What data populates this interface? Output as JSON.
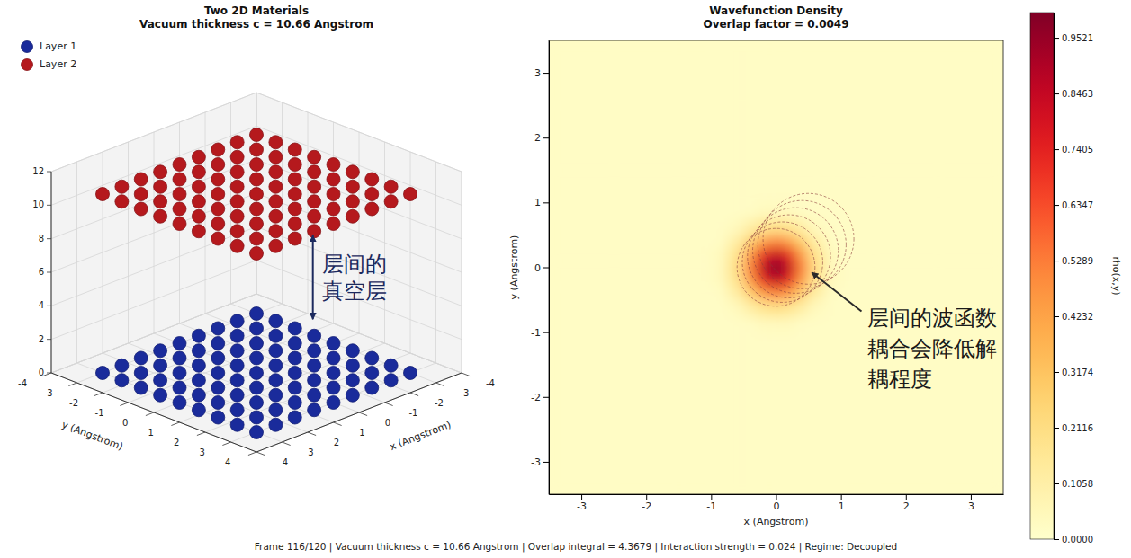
{
  "chart_data": [
    {
      "type": "scatter3d",
      "title": "Two 2D Materials",
      "subtitle": "Vacuum thickness c = 10.66 Angstrom",
      "x_label": "x (Angstrom)",
      "y_label": "y (Angstrom)",
      "xlim": [
        -4,
        4
      ],
      "xticks": [
        -4,
        -3,
        -2,
        -1,
        0,
        1,
        2,
        3,
        4
      ],
      "ylim": [
        -4,
        4
      ],
      "yticks": [
        -4,
        -3,
        -2,
        -1,
        0,
        1,
        2,
        3,
        4
      ],
      "zlim": [
        0,
        12
      ],
      "zticks": [
        0,
        2,
        4,
        6,
        8,
        10,
        12
      ],
      "grid": true,
      "legend": "upper left",
      "series": [
        {
          "name": "Layer 1",
          "color": "#1a2b9b",
          "marker": "circle",
          "x": [
            -3,
            -2.25,
            -1.5,
            -0.75,
            0,
            0.75,
            1.5,
            2.25,
            3,
            -3,
            -2.25,
            -1.5,
            -0.75,
            0,
            0.75,
            1.5,
            2.25,
            3,
            -3,
            -2.25,
            -1.5,
            -0.75,
            0,
            0.75,
            1.5,
            2.25,
            3,
            -3,
            -2.25,
            -1.5,
            -0.75,
            0,
            0.75,
            1.5,
            2.25,
            3,
            -3,
            -2.25,
            -1.5,
            -0.75,
            0,
            0.75,
            1.5,
            2.25,
            3,
            -3,
            -2.25,
            -1.5,
            -0.75,
            0,
            0.75,
            1.5,
            2.25,
            3,
            -3,
            -2.25,
            -1.5,
            -0.75,
            0,
            0.75,
            1.5,
            2.25,
            3,
            -3,
            -2.25,
            -1.5,
            -0.75,
            0,
            0.75,
            1.5,
            2.25,
            3,
            -3,
            -2.25,
            -1.5,
            -0.75,
            0,
            0.75,
            1.5,
            2.25,
            3
          ],
          "y": [
            -3,
            -3,
            -3,
            -3,
            -3,
            -3,
            -3,
            -3,
            -3,
            -2.25,
            -2.25,
            -2.25,
            -2.25,
            -2.25,
            -2.25,
            -2.25,
            -2.25,
            -2.25,
            -1.5,
            -1.5,
            -1.5,
            -1.5,
            -1.5,
            -1.5,
            -1.5,
            -1.5,
            -1.5,
            -0.75,
            -0.75,
            -0.75,
            -0.75,
            -0.75,
            -0.75,
            -0.75,
            -0.75,
            -0.75,
            0,
            0,
            0,
            0,
            0,
            0,
            0,
            0,
            0,
            0.75,
            0.75,
            0.75,
            0.75,
            0.75,
            0.75,
            0.75,
            0.75,
            0.75,
            1.5,
            1.5,
            1.5,
            1.5,
            1.5,
            1.5,
            1.5,
            1.5,
            1.5,
            2.25,
            2.25,
            2.25,
            2.25,
            2.25,
            2.25,
            2.25,
            2.25,
            2.25,
            3,
            3,
            3,
            3,
            3,
            3,
            3,
            3,
            3
          ],
          "z": [
            0,
            0,
            0,
            0,
            0,
            0,
            0,
            0,
            0,
            0,
            0,
            0,
            0,
            0,
            0,
            0,
            0,
            0,
            0,
            0,
            0,
            0,
            0,
            0,
            0,
            0,
            0,
            0,
            0,
            0,
            0,
            0,
            0,
            0,
            0,
            0,
            0,
            0,
            0,
            0,
            0,
            0,
            0,
            0,
            0,
            0,
            0,
            0,
            0,
            0,
            0,
            0,
            0,
            0,
            0,
            0,
            0,
            0,
            0,
            0,
            0,
            0,
            0,
            0,
            0,
            0,
            0,
            0,
            0,
            0,
            0,
            0,
            0,
            0,
            0,
            0,
            0,
            0,
            0,
            0,
            0
          ]
        },
        {
          "name": "Layer 2",
          "color": "#b5191d",
          "marker": "circle",
          "x": [
            -3,
            -2.25,
            -1.5,
            -0.75,
            0,
            0.75,
            1.5,
            2.25,
            3,
            -3,
            -2.25,
            -1.5,
            -0.75,
            0,
            0.75,
            1.5,
            2.25,
            3,
            -3,
            -2.25,
            -1.5,
            -0.75,
            0,
            0.75,
            1.5,
            2.25,
            3,
            -3,
            -2.25,
            -1.5,
            -0.75,
            0,
            0.75,
            1.5,
            2.25,
            3,
            -3,
            -2.25,
            -1.5,
            -0.75,
            0,
            0.75,
            1.5,
            2.25,
            3,
            -3,
            -2.25,
            -1.5,
            -0.75,
            0,
            0.75,
            1.5,
            2.25,
            3,
            -3,
            -2.25,
            -1.5,
            -0.75,
            0,
            0.75,
            1.5,
            2.25,
            3,
            -3,
            -2.25,
            -1.5,
            -0.75,
            0,
            0.75,
            1.5,
            2.25,
            3,
            -3,
            -2.25,
            -1.5,
            -0.75,
            0,
            0.75,
            1.5,
            2.25,
            3
          ],
          "y": [
            -3,
            -3,
            -3,
            -3,
            -3,
            -3,
            -3,
            -3,
            -3,
            -2.25,
            -2.25,
            -2.25,
            -2.25,
            -2.25,
            -2.25,
            -2.25,
            -2.25,
            -2.25,
            -1.5,
            -1.5,
            -1.5,
            -1.5,
            -1.5,
            -1.5,
            -1.5,
            -1.5,
            -1.5,
            -0.75,
            -0.75,
            -0.75,
            -0.75,
            -0.75,
            -0.75,
            -0.75,
            -0.75,
            -0.75,
            0,
            0,
            0,
            0,
            0,
            0,
            0,
            0,
            0,
            0.75,
            0.75,
            0.75,
            0.75,
            0.75,
            0.75,
            0.75,
            0.75,
            0.75,
            1.5,
            1.5,
            1.5,
            1.5,
            1.5,
            1.5,
            1.5,
            1.5,
            1.5,
            2.25,
            2.25,
            2.25,
            2.25,
            2.25,
            2.25,
            2.25,
            2.25,
            2.25,
            3,
            3,
            3,
            3,
            3,
            3,
            3,
            3,
            3
          ],
          "z": [
            10.66,
            10.66,
            10.66,
            10.66,
            10.66,
            10.66,
            10.66,
            10.66,
            10.66,
            10.66,
            10.66,
            10.66,
            10.66,
            10.66,
            10.66,
            10.66,
            10.66,
            10.66,
            10.66,
            10.66,
            10.66,
            10.66,
            10.66,
            10.66,
            10.66,
            10.66,
            10.66,
            10.66,
            10.66,
            10.66,
            10.66,
            10.66,
            10.66,
            10.66,
            10.66,
            10.66,
            10.66,
            10.66,
            10.66,
            10.66,
            10.66,
            10.66,
            10.66,
            10.66,
            10.66,
            10.66,
            10.66,
            10.66,
            10.66,
            10.66,
            10.66,
            10.66,
            10.66,
            10.66,
            10.66,
            10.66,
            10.66,
            10.66,
            10.66,
            10.66,
            10.66,
            10.66,
            10.66,
            10.66,
            10.66,
            10.66,
            10.66,
            10.66,
            10.66,
            10.66,
            10.66,
            10.66,
            10.66,
            10.66,
            10.66,
            10.66,
            10.66,
            10.66,
            10.66,
            10.66,
            10.66
          ]
        }
      ],
      "annotations": [
        {
          "text": "层间的真空层",
          "x": -1.1,
          "y": 1.1,
          "z": [
            3.2,
            8.2
          ]
        }
      ]
    },
    {
      "type": "heatmap",
      "title": "Wavefunction Density",
      "subtitle": "Overlap factor = 0.0049",
      "x_label": "x (Angstrom)",
      "y_label": "y (Angstrom)",
      "xlim": [
        -3.5,
        3.5
      ],
      "xticks": [
        -3,
        -2,
        -1,
        0,
        1,
        2,
        3
      ],
      "ylim": [
        -3.5,
        3.5
      ],
      "yticks": [
        -3,
        -2,
        -1,
        0,
        1,
        2,
        3
      ],
      "x_edges": [
        -3.5,
        -2.5,
        -1.5,
        -1,
        -0.75,
        -0.5,
        -0.3,
        -0.1,
        0.1,
        0.3,
        0.5,
        0.75,
        1,
        1.5,
        2.5,
        3.5
      ],
      "y_edges": [
        -3.5,
        -2.5,
        -1.5,
        -1,
        -0.75,
        -0.5,
        -0.3,
        -0.1,
        0.1,
        0.3,
        0.5,
        0.75,
        1,
        1.5,
        2.5,
        3.5
      ],
      "values": [
        [
          0.02,
          0.02,
          0.02,
          0.02,
          0.02,
          0.02,
          0.02,
          0.02,
          0.02,
          0.02,
          0.02,
          0.02,
          0.02,
          0.02,
          0.02
        ],
        [
          0.02,
          0.02,
          0.02,
          0.02,
          0.02,
          0.02,
          0.02,
          0.02,
          0.02,
          0.02,
          0.02,
          0.02,
          0.02,
          0.02,
          0.02
        ],
        [
          0.02,
          0.02,
          0.02,
          0.02,
          0.02,
          0.02,
          0.02,
          0.02,
          0.02,
          0.02,
          0.02,
          0.02,
          0.02,
          0.02,
          0.02
        ],
        [
          0.02,
          0.02,
          0.02,
          0.02,
          0.02,
          0.02,
          0.04,
          0.04,
          0.04,
          0.02,
          0.02,
          0.02,
          0.02,
          0.02,
          0.02
        ],
        [
          0.02,
          0.02,
          0.02,
          0.02,
          0.04,
          0.11,
          0.17,
          0.2,
          0.17,
          0.11,
          0.04,
          0.02,
          0.02,
          0.02,
          0.02
        ],
        [
          0.02,
          0.02,
          0.02,
          0.02,
          0.11,
          0.27,
          0.44,
          0.52,
          0.44,
          0.27,
          0.11,
          0.02,
          0.02,
          0.02,
          0.02
        ],
        [
          0.02,
          0.02,
          0.02,
          0.04,
          0.17,
          0.44,
          0.72,
          0.85,
          0.72,
          0.44,
          0.17,
          0.04,
          0.02,
          0.02,
          0.02
        ],
        [
          0.02,
          0.02,
          0.02,
          0.04,
          0.2,
          0.52,
          0.85,
          1,
          0.85,
          0.52,
          0.2,
          0.04,
          0.02,
          0.02,
          0.02
        ],
        [
          0.02,
          0.02,
          0.02,
          0.04,
          0.17,
          0.44,
          0.72,
          0.85,
          0.72,
          0.44,
          0.17,
          0.04,
          0.02,
          0.02,
          0.02
        ],
        [
          0.02,
          0.02,
          0.02,
          0.02,
          0.11,
          0.27,
          0.44,
          0.52,
          0.44,
          0.27,
          0.11,
          0.02,
          0.02,
          0.02,
          0.02
        ],
        [
          0.02,
          0.02,
          0.02,
          0.02,
          0.04,
          0.11,
          0.17,
          0.2,
          0.17,
          0.11,
          0.04,
          0.02,
          0.02,
          0.02,
          0.02
        ],
        [
          0.02,
          0.02,
          0.02,
          0.02,
          0.02,
          0.02,
          0.04,
          0.04,
          0.04,
          0.02,
          0.02,
          0.02,
          0.02,
          0.02,
          0.02
        ],
        [
          0.02,
          0.02,
          0.02,
          0.02,
          0.02,
          0.02,
          0.02,
          0.02,
          0.02,
          0.02,
          0.02,
          0.02,
          0.02,
          0.02,
          0.02
        ],
        [
          0.02,
          0.02,
          0.02,
          0.02,
          0.02,
          0.02,
          0.02,
          0.02,
          0.02,
          0.02,
          0.02,
          0.02,
          0.02,
          0.02,
          0.02
        ],
        [
          0.02,
          0.02,
          0.02,
          0.02,
          0.02,
          0.02,
          0.02,
          0.02,
          0.02,
          0.02,
          0.02,
          0.02,
          0.02,
          0.02,
          0.02
        ]
      ],
      "colorbar": {
        "label": "rho(x,y)",
        "lim": [
          0,
          1
        ],
        "ticks": [
          {
            "value": 0,
            "label": "0.0000"
          },
          0.1058,
          0.2116,
          0.3174,
          0.4232,
          0.5289,
          0.6347,
          0.7405,
          0.8463,
          0.9521
        ]
      },
      "contours": [
        {
          "cx": 0,
          "cy": 0,
          "r": 0.6
        },
        {
          "cx": 0.1,
          "cy": 0.08,
          "r": 0.62
        },
        {
          "cx": 0.2,
          "cy": 0.17,
          "r": 0.64
        },
        {
          "cx": 0.3,
          "cy": 0.26,
          "r": 0.66
        },
        {
          "cx": 0.4,
          "cy": 0.35,
          "r": 0.68
        },
        {
          "cx": 0.5,
          "cy": 0.44,
          "r": 0.7
        }
      ],
      "annotations": [
        {
          "text": "层间的波函数耦合会降低解耦程度",
          "xy": [
            0.55,
            -0.08
          ],
          "xytext": [
            1.4,
            -0.9
          ]
        }
      ]
    }
  ],
  "footer": "Frame 116/120 | Vacuum thickness c = 10.66 Angstrom | Overlap integral = 4.3679 | Interaction strength = 0.024 | Regime: Decoupled"
}
